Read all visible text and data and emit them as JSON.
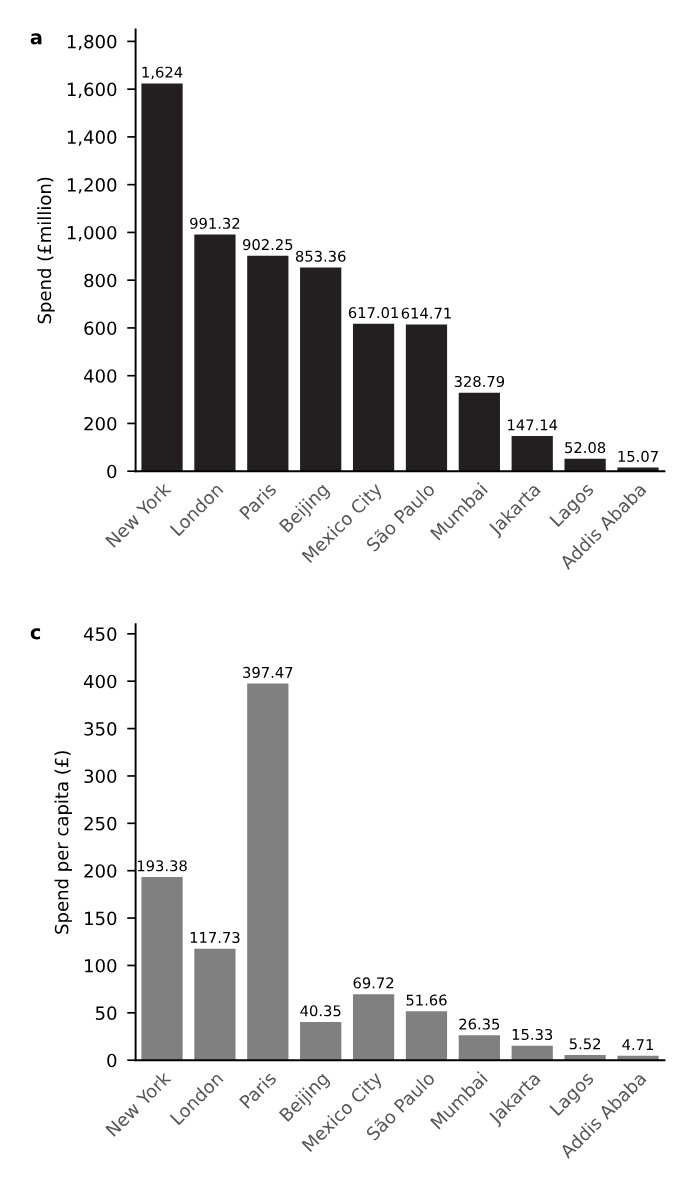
{
  "chart_data": [
    {
      "type": "bar",
      "title": "a",
      "ylabel": "Spend (£million)",
      "categories": [
        "New York",
        "London",
        "Paris",
        "Beijing",
        "Mexico City",
        "São Paulo",
        "Mumbai",
        "Jakarta",
        "Lagos",
        "Addis Ababa"
      ],
      "values": [
        1624,
        991.32,
        902.25,
        853.36,
        617.01,
        614.71,
        328.79,
        147.14,
        52.08,
        15.07
      ],
      "value_labels": [
        "1,624",
        "991.32",
        "902.25",
        "853.36",
        "617.01",
        "614.71",
        "328.79",
        "147.14",
        "52.08",
        "15.07"
      ],
      "color": "#231f20",
      "ylim": [
        0,
        1850
      ],
      "yticks": [
        0,
        200,
        400,
        600,
        800,
        {
          "value": 1000,
          "label": "1,000"
        },
        {
          "value": 1200,
          "label": "1,200"
        },
        {
          "value": 1400,
          "label": "1,400"
        },
        {
          "value": 1600,
          "label": "1,600"
        },
        {
          "value": 1800,
          "label": "1,800"
        }
      ],
      "grid": false,
      "legend": false
    },
    {
      "type": "bar",
      "title": "c",
      "ylabel": "Spend per capita (£)",
      "categories": [
        "New York",
        "London",
        "Paris",
        "Beijing",
        "Mexico City",
        "São Paulo",
        "Mumbai",
        "Jakarta",
        "Lagos",
        "Addis Ababa"
      ],
      "values": [
        193.38,
        117.73,
        397.47,
        40.35,
        69.72,
        51.66,
        26.35,
        15.33,
        5.52,
        4.71
      ],
      "data_labels": true,
      "color": "#808080",
      "ylim": [
        0,
        460
      ],
      "yticks": [
        0,
        50,
        100,
        150,
        200,
        250,
        300,
        350,
        400,
        450
      ],
      "grid": false,
      "legend": false
    }
  ]
}
